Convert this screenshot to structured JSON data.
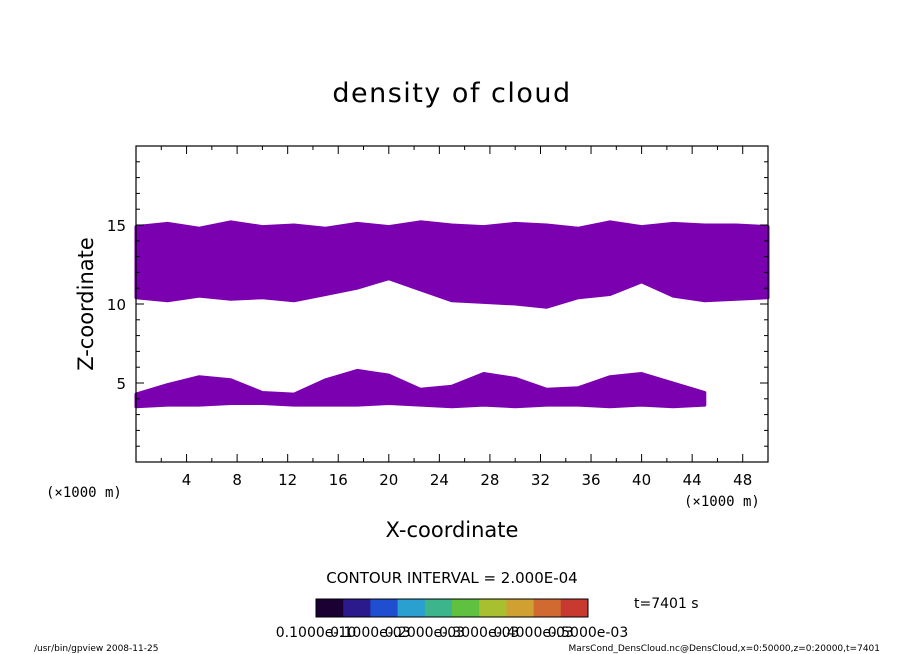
{
  "chart_data": {
    "type": "heatmap",
    "title": "density of cloud",
    "xlabel": "X-coordinate",
    "ylabel": "Z-coordinate",
    "x_unit": "(×1000 m)",
    "y_unit": "(×1000 m)",
    "xlim": [
      0,
      50
    ],
    "ylim": [
      0,
      20
    ],
    "x_ticks": [
      4,
      8,
      12,
      16,
      20,
      24,
      28,
      32,
      36,
      40,
      44,
      48
    ],
    "y_ticks": [
      5,
      10,
      15
    ],
    "contour_interval_text": "CONTOUR INTERVAL = 2.000E-04",
    "time_text": "t=7401 s",
    "colorbar_labels": [
      "0.1000e-10",
      "0.1000e-03",
      "0.2000e-03",
      "0.3000e-03",
      "0.4000e-03",
      "0.5000e-03"
    ],
    "colorbar_colors": [
      "#1a0033",
      "#2a1a8c",
      "#1f4fd0",
      "#2aa0d0",
      "#3cb48c",
      "#60c040",
      "#a8c030",
      "#d0a030",
      "#d06a30",
      "#c83a30"
    ],
    "fill_color": "#7a00b0",
    "upper_layer": {
      "x_range": [
        0,
        50
      ],
      "top": [
        14.9,
        15.1,
        14.8,
        15.2,
        14.9,
        15.0,
        14.8,
        15.1,
        14.9,
        15.2,
        15.0,
        14.9,
        15.1,
        15.0,
        14.8,
        15.2,
        14.9,
        15.1,
        15.0,
        15.0,
        14.9
      ],
      "bottom": [
        10.4,
        10.2,
        10.5,
        10.3,
        10.4,
        10.2,
        10.6,
        11.0,
        11.6,
        10.9,
        10.2,
        10.1,
        10.0,
        9.8,
        10.4,
        10.6,
        11.4,
        10.5,
        10.2,
        10.3,
        10.4
      ]
    },
    "lower_layer": {
      "x_range": [
        0,
        45
      ],
      "top": [
        4.3,
        4.9,
        5.4,
        5.2,
        4.4,
        4.3,
        5.2,
        5.8,
        5.5,
        4.6,
        4.8,
        5.6,
        5.3,
        4.6,
        4.7,
        5.4,
        5.6,
        5.0,
        4.4
      ],
      "bottom": [
        3.5,
        3.6,
        3.6,
        3.7,
        3.7,
        3.6,
        3.6,
        3.6,
        3.7,
        3.6,
        3.5,
        3.6,
        3.5,
        3.6,
        3.6,
        3.5,
        3.6,
        3.5,
        3.6
      ]
    }
  },
  "footer": {
    "left": "/usr/bin/gpview  2008-11-25",
    "right": "MarsCond_DensCloud.nc@DensCloud,x=0:50000,z=0:20000,t=7401"
  }
}
